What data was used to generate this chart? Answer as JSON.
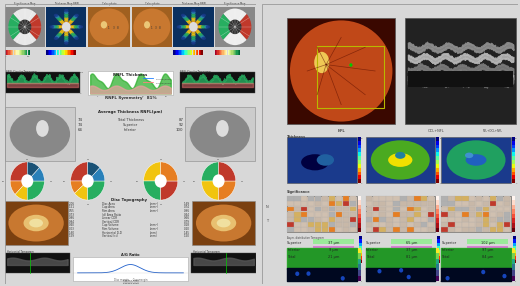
{
  "outer_bg": "#d8d8d8",
  "left_panel_bg": "#f5f5f5",
  "right_panel_bg": "#f5f5f5",
  "top_labels": [
    "Significance Map",
    "Thickness Map RNFL",
    "Color photo",
    "Color photo",
    "Thickness Map RNFL",
    "Significance Map"
  ],
  "symmetry_text": "RNFL Symmetry   81%",
  "avg_thickness_title": "Average Thickness RNFL(μm)",
  "avg_thickness_rows": [
    {
      "left": "74",
      "label": "Total Thickness",
      "right": "87"
    },
    {
      "left": "74",
      "label": "Superior",
      "right": "92"
    },
    {
      "left": "64",
      "label": "Inferior",
      "right": "100"
    }
  ],
  "disc_topo_title": "Disc Topography",
  "disc_topo_rows": [
    {
      "lv": "2.06",
      "label": "Disc Area",
      "unit": "(mm²)",
      "rv": "1.69"
    },
    {
      "lv": "1.51",
      "label": "Cup Area",
      "unit": "(mm²)",
      "rv": "0.74"
    },
    {
      "lv": "0.55",
      "label": "Rim Area",
      "unit": "(mm²)",
      "rv": "0.96"
    },
    {
      "lv": "0.73",
      "label": "(d) Area Ratio",
      "unit": "",
      "rv": "0.44"
    },
    {
      "lv": "0.86",
      "label": "Linear CDR",
      "unit": "",
      "rv": "0.66"
    },
    {
      "lv": "0.84",
      "label": "Vertical CDR",
      "unit": "",
      "rv": "0.79"
    },
    {
      "lv": "0.40",
      "label": "Cup Volume",
      "unit": "(mm³)",
      "rv": "0.18"
    },
    {
      "lv": "0.03",
      "label": "Rim Volume",
      "unit": "(mm³)",
      "rv": "0.20"
    },
    {
      "lv": "1.60",
      "label": "Horizontal D-D",
      "unit": "(mm)",
      "rv": "1.45"
    },
    {
      "lv": "1.59",
      "label": "Vertical (r-i)",
      "unit": "(mm)",
      "rv": "1.50"
    }
  ],
  "right_col_labels": [
    "NFL\nThickness",
    "OCL+NFL",
    "NFL+OCL+NFL"
  ],
  "measurements": {
    "col1": {
      "Superior": "37 μm",
      "Inferior": "9 μm",
      "Total": "21 μm"
    },
    "col2": {
      "Superior": "65 μm",
      "Inferior": "37 μm",
      "Total": "81 μm"
    },
    "col3": {
      "Superior": "102 μm",
      "Inferior": "97 μm",
      "Total": "84 μm"
    }
  },
  "meas_label_color": {
    "Superior": "#90ee90",
    "Inferior": "#da70d6",
    "Total": "#ccaacc"
  },
  "rnfl_chart_title": "RNFL Thickness",
  "ag_ratio_title": "A/G Ratio",
  "disc_margin_text": "Disc margin     Cup margin",
  "htom_label": "Horizontal Tomogram",
  "rnfl_tom_label": "RNFL Circular Tomogram",
  "significance_label": "Significance"
}
